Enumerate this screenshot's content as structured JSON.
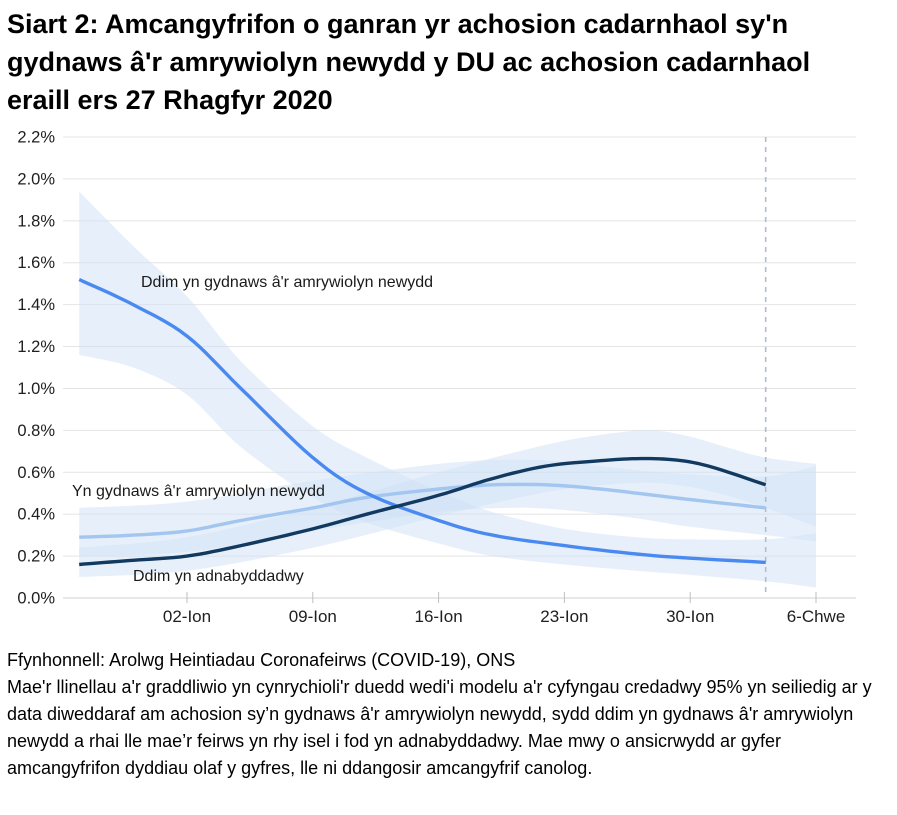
{
  "header": {
    "title": "Siart 2: Amcangyfrifon o ganran yr achosion cadarnhaol sy'n gydnaws â'r amrywiolyn newydd y DU ac achosion cadarnhaol eraill ers 27 Rhagfyr 2020"
  },
  "footer": {
    "source": "Ffynhonnell: Arolwg Heintiadau Coronafeirws (COVID-19), ONS",
    "note": "Mae'r llinellau a'r graddliwio yn cynrychioli'r duedd wedi'i modelu a'r cyfyngau credadwy 95% yn seiliedig ar y data diweddaraf am achosion sy’n gydnaws â'r amrywiolyn newydd, sydd ddim yn gydnaws â'r amrywiolyn newydd a rhai lle mae’r feirws yn rhy isel i fod yn adnabyddadwy. Mae mwy o ansicrwydd ar gyfer amcangyfrifon dyddiau olaf y gyfres, lle ni ddangosir amcangyfrif canolog."
  },
  "chart_data": {
    "type": "line",
    "x_axis": {
      "tick_days": [
        6,
        13,
        20,
        27,
        34,
        41
      ],
      "tick_labels": [
        "02-Ion",
        "09-Ion",
        "16-Ion",
        "23-Ion",
        "30-Ion",
        "6-Chwe"
      ]
    },
    "y_axis": {
      "min": 0,
      "max": 2.2,
      "step": 0.2,
      "tick_labels": [
        "0.0%",
        "0.2%",
        "0.4%",
        "0.6%",
        "0.8%",
        "1.0%",
        "1.2%",
        "1.4%",
        "1.6%",
        "1.8%",
        "2.0%",
        "2.2%"
      ]
    },
    "grid_on": true,
    "colors": {
      "grid": "#E4E4E4",
      "axis_line": "#D2D2D2",
      "tick": "#BFBFBF",
      "band_fill": "#CFE2F6",
      "dashed_line": "#AFBDD0",
      "axis_text": "#202020"
    },
    "band_opacity": 0.5,
    "dashed_vline_day": 38.2,
    "series": [
      {
        "name": "ddim-yn-gydnaws",
        "label": "Ddim yn gydnaws â'r amrywiolyn newydd",
        "color": "#4A8AF0",
        "points": [
          [
            0,
            1.52
          ],
          [
            3,
            1.4
          ],
          [
            6,
            1.25
          ],
          [
            9,
            1.0
          ],
          [
            13,
            0.67
          ],
          [
            16,
            0.5
          ],
          [
            20,
            0.37
          ],
          [
            23,
            0.3
          ],
          [
            27,
            0.25
          ],
          [
            31,
            0.21
          ],
          [
            34,
            0.19
          ],
          [
            38.2,
            0.17
          ]
        ],
        "band_upper": [
          [
            0,
            1.94
          ],
          [
            3,
            1.68
          ],
          [
            6,
            1.44
          ],
          [
            9,
            1.13
          ],
          [
            13,
            0.82
          ],
          [
            16,
            0.67
          ],
          [
            20,
            0.51
          ],
          [
            23,
            0.41
          ],
          [
            27,
            0.33
          ],
          [
            31,
            0.29
          ],
          [
            34,
            0.28
          ],
          [
            38.2,
            0.28
          ],
          [
            41,
            0.31
          ]
        ],
        "band_lower": [
          [
            0,
            1.16
          ],
          [
            3,
            1.1
          ],
          [
            6,
            0.97
          ],
          [
            9,
            0.72
          ],
          [
            13,
            0.48
          ],
          [
            16,
            0.36
          ],
          [
            20,
            0.26
          ],
          [
            23,
            0.2
          ],
          [
            27,
            0.16
          ],
          [
            31,
            0.13
          ],
          [
            34,
            0.11
          ],
          [
            38.2,
            0.08
          ],
          [
            41,
            0.05
          ]
        ]
      },
      {
        "name": "yn-gydnaws",
        "label": "Yn gydnaws â'r amrywiolyn newydd",
        "color": "#A3C6F0",
        "points": [
          [
            0,
            0.29
          ],
          [
            3,
            0.3
          ],
          [
            6,
            0.32
          ],
          [
            9,
            0.37
          ],
          [
            13,
            0.43
          ],
          [
            16,
            0.48
          ],
          [
            20,
            0.52
          ],
          [
            23,
            0.54
          ],
          [
            26,
            0.54
          ],
          [
            29,
            0.52
          ],
          [
            32,
            0.49
          ],
          [
            35,
            0.46
          ],
          [
            38.2,
            0.43
          ]
        ],
        "band_upper": [
          [
            0,
            0.43
          ],
          [
            6,
            0.46
          ],
          [
            13,
            0.56
          ],
          [
            20,
            0.64
          ],
          [
            24,
            0.66
          ],
          [
            27,
            0.65
          ],
          [
            31,
            0.61
          ],
          [
            34,
            0.59
          ],
          [
            38.2,
            0.58
          ],
          [
            41,
            0.63
          ]
        ],
        "band_lower": [
          [
            0,
            0.2
          ],
          [
            6,
            0.22
          ],
          [
            13,
            0.32
          ],
          [
            20,
            0.41
          ],
          [
            24,
            0.43
          ],
          [
            27,
            0.42
          ],
          [
            31,
            0.38
          ],
          [
            34,
            0.34
          ],
          [
            38.2,
            0.3
          ],
          [
            41,
            0.27
          ]
        ]
      },
      {
        "name": "ddim-yn-adnabyddadwy",
        "label": "Ddim yn adnabyddadwy",
        "color": "#12395F",
        "points": [
          [
            0,
            0.16
          ],
          [
            3,
            0.18
          ],
          [
            6,
            0.2
          ],
          [
            9,
            0.25
          ],
          [
            13,
            0.33
          ],
          [
            16,
            0.4
          ],
          [
            20,
            0.49
          ],
          [
            23,
            0.57
          ],
          [
            26,
            0.63
          ],
          [
            29,
            0.655
          ],
          [
            31,
            0.665
          ],
          [
            33,
            0.66
          ],
          [
            35,
            0.63
          ],
          [
            38.2,
            0.54
          ]
        ],
        "band_upper": [
          [
            0,
            0.24
          ],
          [
            6,
            0.29
          ],
          [
            13,
            0.43
          ],
          [
            20,
            0.6
          ],
          [
            24,
            0.69
          ],
          [
            27,
            0.75
          ],
          [
            30,
            0.79
          ],
          [
            32,
            0.8
          ],
          [
            34,
            0.77
          ],
          [
            36,
            0.72
          ],
          [
            38.2,
            0.67
          ],
          [
            41,
            0.64
          ]
        ],
        "band_lower": [
          [
            0,
            0.1
          ],
          [
            6,
            0.13
          ],
          [
            13,
            0.24
          ],
          [
            20,
            0.39
          ],
          [
            24,
            0.47
          ],
          [
            27,
            0.52
          ],
          [
            30,
            0.545
          ],
          [
            32,
            0.55
          ],
          [
            34,
            0.53
          ],
          [
            36,
            0.49
          ],
          [
            38.2,
            0.43
          ],
          [
            41,
            0.34
          ]
        ]
      }
    ]
  }
}
